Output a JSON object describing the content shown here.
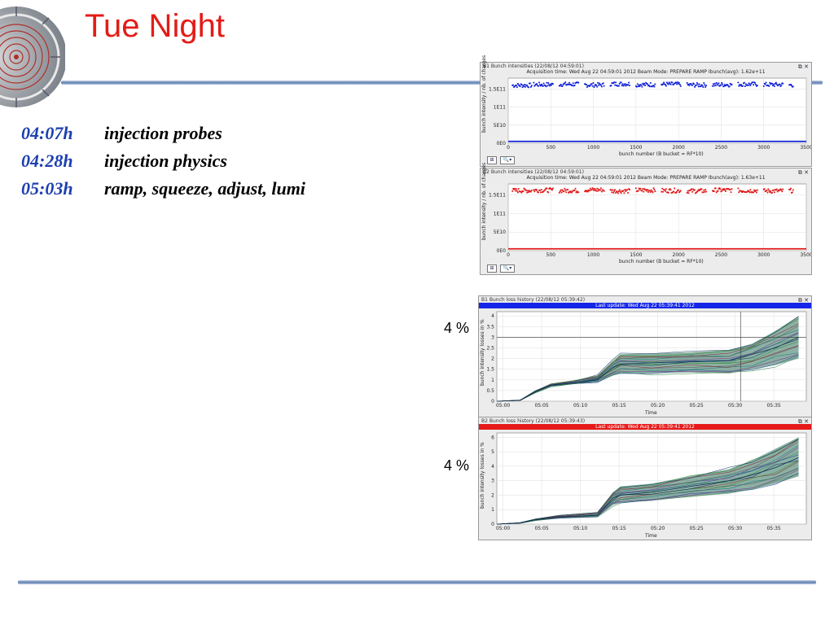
{
  "slide": {
    "title": "Tue Night",
    "log": [
      {
        "time": "04:07h",
        "text": "injection probes"
      },
      {
        "time": "04:28h",
        "text": "injection physics"
      },
      {
        "time": "05:03h",
        "text": "ramp, squeeze, adjust, lumi"
      }
    ],
    "annotations": {
      "b1_loss": "4 %",
      "b2_loss": "4 %"
    }
  },
  "panels": {
    "b1_intensity": {
      "title": "B1 Bunch intensities  (22/08/12 04:59:01)",
      "subtitle": "Acquisition time: Wed Aug 22 04:59:01 2012   Beam Mode: PREPARE RAMP   Ibunch(avg): 1.62e+11",
      "ylabel": "bunch intensity / nb. of charges",
      "xlabel": "bunch number (B bucket = RF*10)",
      "color": "#1020d8"
    },
    "b2_intensity": {
      "title": "B2 Bunch intensities  (22/08/12 04:59:01)",
      "subtitle": "Acquisition time: Wed Aug 22 04:59:01 2012   Beam Mode: PREPARE RAMP   Ibunch(avg): 1.63e+11",
      "ylabel": "bunch intensity / nb. of charges",
      "xlabel": "bunch number (B bucket = RF*10)",
      "color": "#e01818"
    },
    "b1_loss": {
      "title": "B1 Bunch loss history  (22/08/12 05:39:42)",
      "bar_text": "Last update: Wed Aug 22 05:39:41 2012",
      "bar_color": "#1426e8",
      "ylabel": "bunch intensity losses in %",
      "xlabel": "Time"
    },
    "b2_loss": {
      "title": "B2 Bunch loss history  (22/08/12 05:39:43)",
      "bar_text": "Last update: Wed Aug 22 05:39:41 2012",
      "bar_color": "#e61a1a",
      "ylabel": "bunch intensity losses in %",
      "xlabel": "Time"
    }
  },
  "chart_data": [
    {
      "type": "scatter",
      "title": "B1 Bunch intensities  (22/08/12 04:59:01)",
      "xlabel": "bunch number (B bucket = RF*10)",
      "ylabel": "bunch intensity / nb. of charges",
      "xlim": [
        0,
        3500
      ],
      "ylim": [
        0,
        180000000000.0
      ],
      "x_ticks": [
        "0",
        "500",
        "1000",
        "1500",
        "2000",
        "2500",
        "3000",
        "3500"
      ],
      "y_ticks": [
        "0E0",
        "5E10",
        "1E11",
        "1.5E11"
      ],
      "series": [
        {
          "color": "#1020d8",
          "x": [
            50,
            300,
            600,
            900,
            1200,
            1500,
            1800,
            2100,
            2400,
            2700,
            3000,
            3300
          ],
          "values": [
            160000000000.0,
            162000000000.0,
            163000000000.0,
            161000000000.0,
            164000000000.0,
            162000000000.0,
            163000000000.0,
            161000000000.0,
            162000000000.0,
            163000000000.0,
            162000000000.0,
            161000000000.0
          ]
        },
        {
          "color": "#1020d8",
          "x": [
            0,
            3500
          ],
          "values": [
            5000000000.0,
            5000000000.0
          ]
        }
      ]
    },
    {
      "type": "scatter",
      "title": "B2 Bunch intensities  (22/08/12 04:59:01)",
      "xlabel": "bunch number (B bucket = RF*10)",
      "ylabel": "bunch intensity / nb. of charges",
      "xlim": [
        0,
        3500
      ],
      "ylim": [
        0,
        180000000000.0
      ],
      "x_ticks": [
        "0",
        "500",
        "1000",
        "1500",
        "2000",
        "2500",
        "3000",
        "3500"
      ],
      "y_ticks": [
        "0E0",
        "5E10",
        "1E11",
        "1.5E11"
      ],
      "series": [
        {
          "color": "#e01818",
          "x": [
            50,
            300,
            600,
            900,
            1200,
            1500,
            1800,
            2100,
            2400,
            2700,
            3000,
            3300
          ],
          "values": [
            162000000000.0,
            163000000000.0,
            162000000000.0,
            164000000000.0,
            161000000000.0,
            163000000000.0,
            162000000000.0,
            161000000000.0,
            163000000000.0,
            162000000000.0,
            161000000000.0,
            162000000000.0
          ]
        },
        {
          "color": "#e01818",
          "x": [
            0,
            3500
          ],
          "values": [
            5000000000.0,
            5000000000.0
          ]
        }
      ]
    },
    {
      "type": "line",
      "title": "B1 Bunch loss history  (22/08/12 05:39:42)",
      "xlabel": "Time",
      "ylabel": "bunch intensity losses in %",
      "x_ticks": [
        "05:00",
        "05:05",
        "05:10",
        "05:15",
        "05:20",
        "05:25",
        "05:30",
        "05:35"
      ],
      "y_ticks": [
        "0",
        "0.5",
        "1",
        "1.5",
        "2",
        "2.5",
        "3",
        "3.5",
        "4"
      ],
      "xlim_minutes": [
        0,
        40
      ],
      "ylim": [
        0,
        4.2
      ],
      "x": [
        0,
        3,
        5,
        7,
        10,
        13,
        15,
        16,
        20,
        25,
        30,
        33,
        36,
        39
      ],
      "series": [
        {
          "name": "upper",
          "values": [
            0,
            0.05,
            0.5,
            0.8,
            0.95,
            1.2,
            1.9,
            2.2,
            2.25,
            2.3,
            2.4,
            2.7,
            3.3,
            4.0
          ]
        },
        {
          "name": "median",
          "values": [
            0,
            0.05,
            0.45,
            0.75,
            0.85,
            1.0,
            1.6,
            1.75,
            1.8,
            1.85,
            1.9,
            2.2,
            2.5,
            3.0
          ]
        },
        {
          "name": "lower",
          "values": [
            0,
            0.03,
            0.4,
            0.7,
            0.8,
            0.9,
            1.2,
            1.3,
            1.3,
            1.35,
            1.3,
            1.5,
            1.7,
            2.0
          ]
        }
      ]
    },
    {
      "type": "line",
      "title": "B2 Bunch loss history  (22/08/12 05:39:43)",
      "xlabel": "Time",
      "ylabel": "bunch intensity losses in %",
      "x_ticks": [
        "05:00",
        "05:05",
        "05:10",
        "05:15",
        "05:20",
        "05:25",
        "05:30",
        "05:35"
      ],
      "y_ticks": [
        "0",
        "1",
        "2",
        "3",
        "4",
        "5",
        "6"
      ],
      "xlim_minutes": [
        0,
        40
      ],
      "ylim": [
        0,
        6.3
      ],
      "x": [
        0,
        3,
        5,
        8,
        13,
        15,
        16,
        20,
        25,
        30,
        33,
        36,
        39
      ],
      "series": [
        {
          "name": "upper",
          "values": [
            0,
            0.1,
            0.35,
            0.6,
            0.8,
            2.2,
            2.6,
            2.8,
            3.3,
            3.8,
            4.4,
            5.2,
            6.0
          ]
        },
        {
          "name": "median",
          "values": [
            0,
            0.08,
            0.3,
            0.5,
            0.6,
            1.8,
            2.0,
            2.2,
            2.6,
            3.0,
            3.4,
            3.9,
            4.6
          ]
        },
        {
          "name": "lower",
          "values": [
            0,
            0.05,
            0.25,
            0.4,
            0.5,
            1.3,
            1.5,
            1.6,
            1.9,
            2.1,
            2.4,
            2.8,
            3.3
          ]
        }
      ]
    }
  ]
}
